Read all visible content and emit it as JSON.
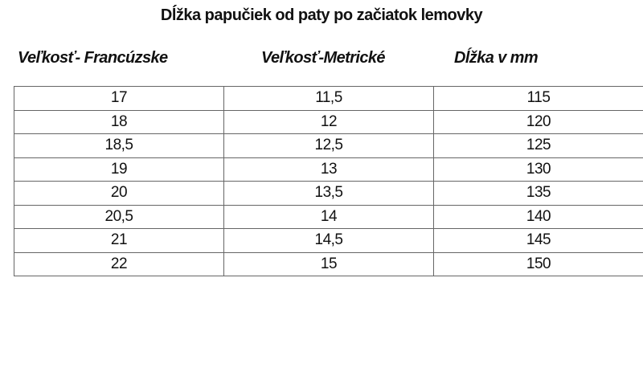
{
  "title": "Dĺžka papučiek od paty po začiatok lemovky",
  "headers": [
    "Veľkosť- Francúzske",
    "Veľkosť-Metrické",
    "Dĺžka v mm"
  ],
  "rows": [
    [
      "17",
      "11,5",
      "115"
    ],
    [
      "18",
      "12",
      "120"
    ],
    [
      "18,5",
      "12,5",
      "125"
    ],
    [
      "19",
      "13",
      "130"
    ],
    [
      "20",
      "13,5",
      "135"
    ],
    [
      "20,5",
      "14",
      "140"
    ],
    [
      "21",
      "14,5",
      "145"
    ],
    [
      "22",
      "15",
      "150"
    ]
  ]
}
